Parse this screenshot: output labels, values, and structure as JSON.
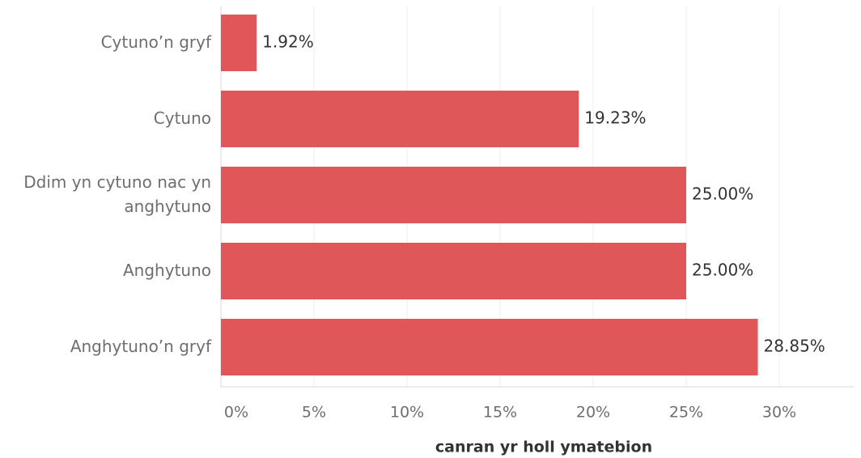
{
  "chart_data": {
    "type": "bar",
    "orientation": "horizontal",
    "categories": [
      [
        "Cytuno’n gryf"
      ],
      [
        "Cytuno"
      ],
      [
        "Ddim yn cytuno nac yn",
        "anghytuno"
      ],
      [
        "Anghytuno"
      ],
      [
        "Anghytuno’n gryf"
      ]
    ],
    "values": [
      1.92,
      19.23,
      25.0,
      25.0,
      28.85
    ],
    "data_labels": [
      "1.92%",
      "19.23%",
      "25.00%",
      "25.00%",
      "28.85%"
    ],
    "xlabel": "canran yr holl ymatebion",
    "ylabel": "",
    "xlim": [
      0,
      34
    ],
    "ticks": [
      0,
      5,
      10,
      15,
      20,
      25,
      30
    ],
    "tick_labels": [
      "0%",
      "5%",
      "10%",
      "15%",
      "20%",
      "25%",
      "30%"
    ],
    "grid": true,
    "legend": "none",
    "bar_color": "#e05759"
  }
}
